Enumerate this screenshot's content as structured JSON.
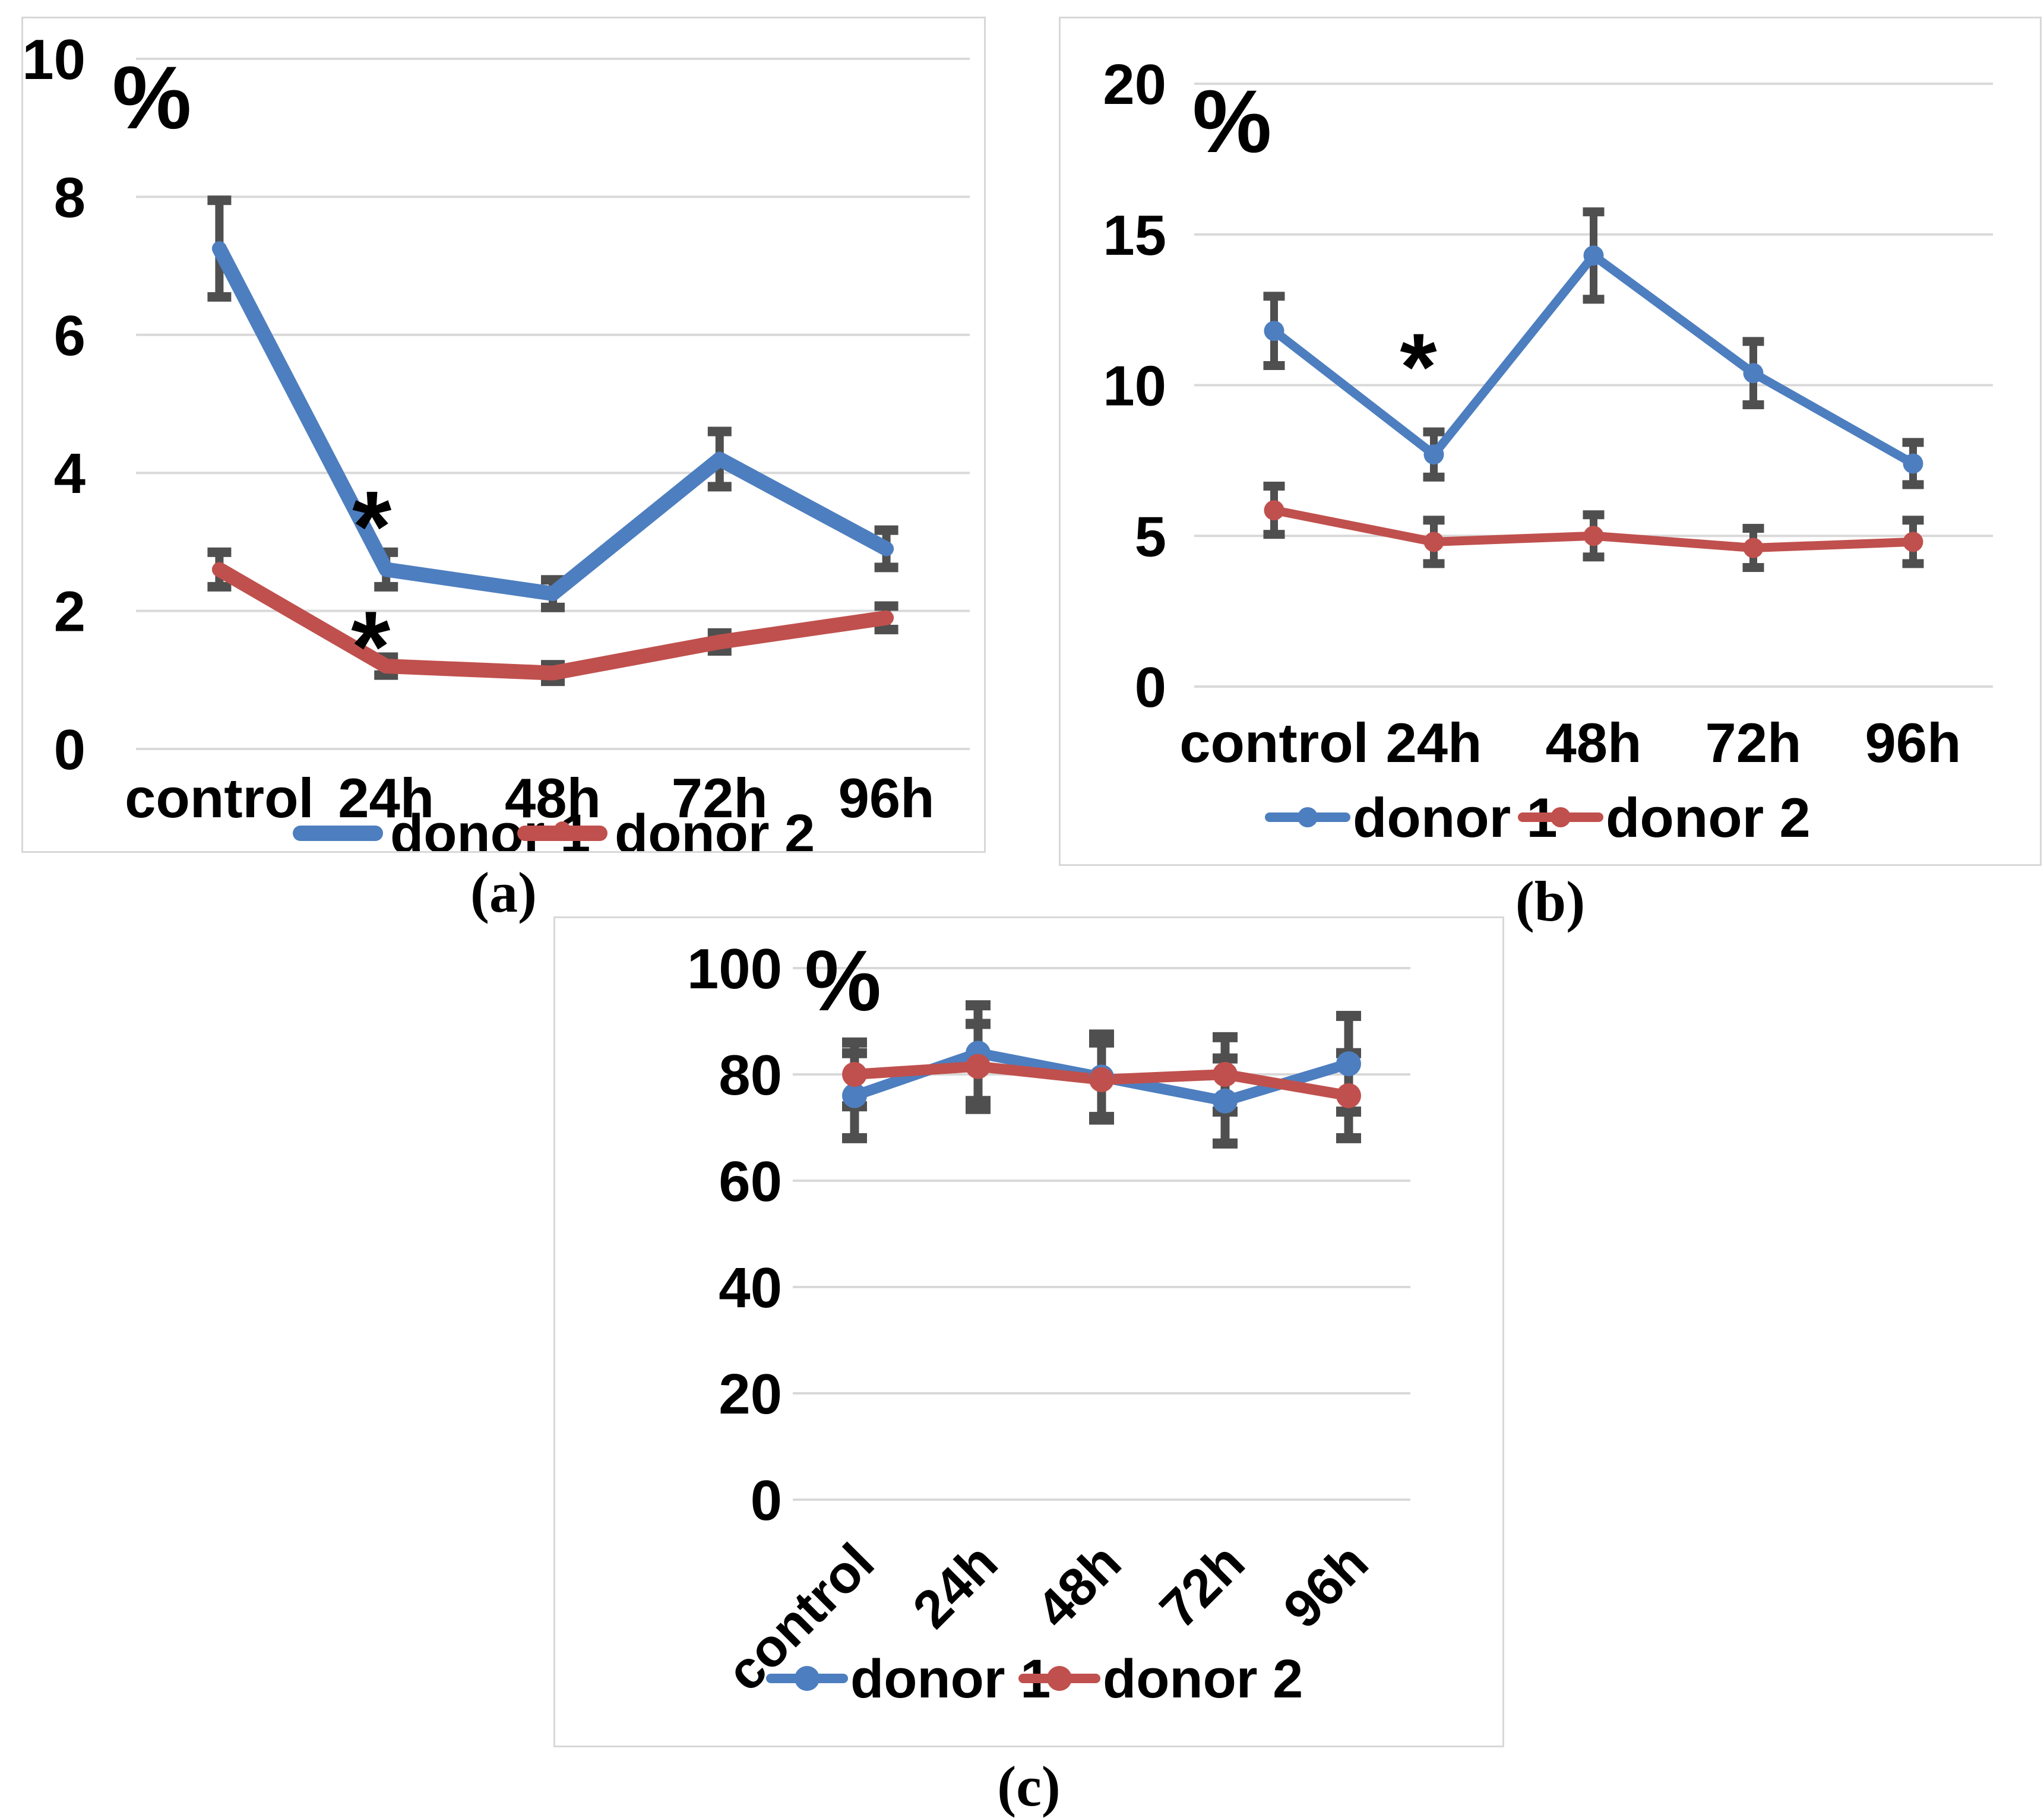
{
  "figure": {
    "captions": {
      "a": "(a)",
      "b": "(b)",
      "c": "(c)"
    },
    "colors": {
      "donor1_blue": "#4d7ebf",
      "donor2_red": "#c0504d",
      "error_bar_gray": "#4f4f4f",
      "gridline_gray": "#d9d9d9"
    }
  },
  "chart_data": [
    {
      "id": "a",
      "type": "line",
      "title": "",
      "ylabel": "%",
      "xlabel": "",
      "categories": [
        "control",
        "24h",
        "48h",
        "72h",
        "96h"
      ],
      "ylim": [
        0,
        10
      ],
      "yticks": [
        0,
        2,
        4,
        6,
        8,
        10
      ],
      "grid": true,
      "legend_position": "bottom",
      "x_label_rotation": 0,
      "series": [
        {
          "name": "donor 1",
          "color": "#4d7ebf",
          "marker": false,
          "values": [
            7.25,
            2.6,
            2.25,
            4.2,
            2.9
          ],
          "errors": [
            0.7,
            0.25,
            0.2,
            0.4,
            0.27
          ]
        },
        {
          "name": "donor 2",
          "color": "#c0504d",
          "marker": false,
          "values": [
            2.6,
            1.2,
            1.1,
            1.55,
            1.9
          ],
          "errors": [
            0.25,
            0.13,
            0.12,
            0.13,
            0.17
          ]
        }
      ],
      "annotations": [
        {
          "text": "*",
          "series": "donor 1",
          "category_index": 1,
          "value": 3.45,
          "dx": -24
        },
        {
          "text": "*",
          "series": "donor 2",
          "category_index": 1,
          "value": 1.71,
          "dx": -26
        }
      ]
    },
    {
      "id": "b",
      "type": "line",
      "title": "",
      "ylabel": "%",
      "xlabel": "",
      "categories": [
        "control",
        "24h",
        "48h",
        "72h",
        "96h"
      ],
      "ylim": [
        0,
        20
      ],
      "yticks": [
        0,
        5,
        10,
        15,
        20
      ],
      "grid": true,
      "legend_position": "bottom",
      "x_label_rotation": 0,
      "series": [
        {
          "name": "donor 1",
          "color": "#4d7ebf",
          "marker": true,
          "values": [
            11.8,
            7.7,
            14.3,
            10.4,
            7.4
          ],
          "errors": [
            1.15,
            0.75,
            1.45,
            1.05,
            0.7
          ]
        },
        {
          "name": "donor 2",
          "color": "#c0504d",
          "marker": true,
          "values": [
            5.85,
            4.8,
            5.0,
            4.6,
            4.8
          ],
          "errors": [
            0.8,
            0.72,
            0.7,
            0.65,
            0.72
          ]
        }
      ],
      "annotations": [
        {
          "text": "*",
          "series": "donor 1",
          "category_index": 1,
          "value": 11.1,
          "dx": -26
        }
      ]
    },
    {
      "id": "c",
      "type": "line",
      "title": "",
      "ylabel": "%",
      "xlabel": "",
      "categories": [
        "control",
        "24h",
        "48h",
        "72h",
        "96h"
      ],
      "ylim": [
        0,
        100
      ],
      "yticks": [
        0,
        20,
        40,
        60,
        80,
        100
      ],
      "grid": true,
      "legend_position": "bottom",
      "x_label_rotation": -45,
      "series": [
        {
          "name": "donor 1",
          "color": "#4d7ebf",
          "marker": true,
          "values": [
            76,
            84,
            79.5,
            75,
            82
          ],
          "errors": [
            8,
            9,
            8,
            8,
            9
          ]
        },
        {
          "name": "donor 2",
          "color": "#c0504d",
          "marker": true,
          "values": [
            80,
            81.5,
            79,
            80,
            76
          ],
          "errors": [
            6,
            8,
            7,
            7,
            8
          ]
        }
      ],
      "annotations": []
    }
  ]
}
